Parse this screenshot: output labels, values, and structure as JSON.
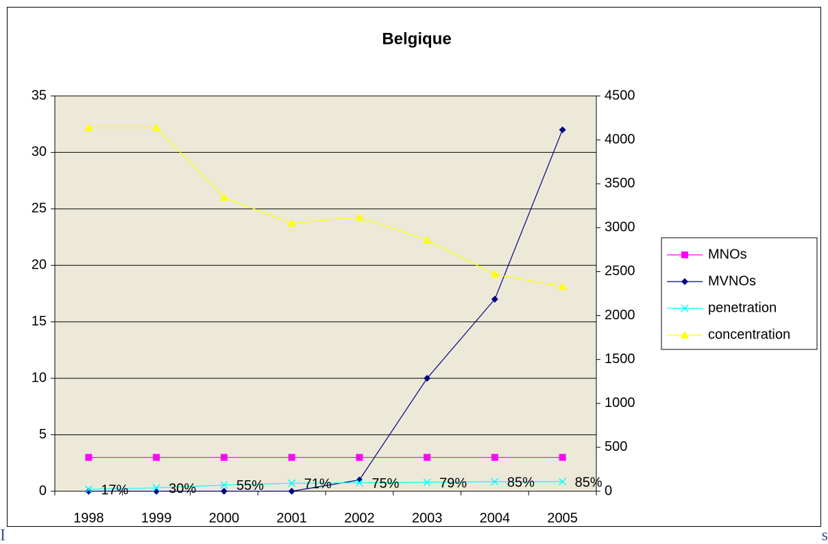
{
  "chart_data": {
    "type": "line",
    "title": "Belgique",
    "categories": [
      "1998",
      "1999",
      "2000",
      "2001",
      "2002",
      "2003",
      "2004",
      "2005"
    ],
    "series": [
      {
        "name": "MNOs",
        "color": "#ff00ff",
        "marker": "square",
        "values": [
          3,
          3,
          3,
          3,
          3,
          3,
          3,
          3
        ]
      },
      {
        "name": "MVNOs",
        "color": "#000080",
        "marker": "diamond",
        "values": [
          0,
          0,
          0,
          0,
          1,
          10,
          17,
          32
        ]
      },
      {
        "name": "penetration",
        "color": "#00ffff",
        "marker": "x",
        "values": [
          0.17,
          0.3,
          0.55,
          0.71,
          0.75,
          0.79,
          0.85,
          0.85
        ],
        "value_labels": [
          "17%",
          "30%",
          "55%",
          "71%",
          "75%",
          "79%",
          "85%",
          "85%"
        ]
      },
      {
        "name": "concentration",
        "color": "#ffff00",
        "marker": "triangle",
        "axis": "y2",
        "values": [
          4140,
          4140,
          3345,
          3050,
          3120,
          2860,
          2470,
          2330
        ]
      }
    ],
    "ylim": [
      0,
      35
    ],
    "yticks": [
      0,
      5,
      10,
      15,
      20,
      25,
      30,
      35
    ],
    "y2lim": [
      0,
      4500
    ],
    "y2ticks": [
      0,
      500,
      1000,
      1500,
      2000,
      2500,
      3000,
      3500,
      4000,
      4500
    ],
    "grid": true,
    "legend": "right",
    "plot_background": "#ece9d8",
    "annotations": [
      "I",
      "s"
    ]
  }
}
